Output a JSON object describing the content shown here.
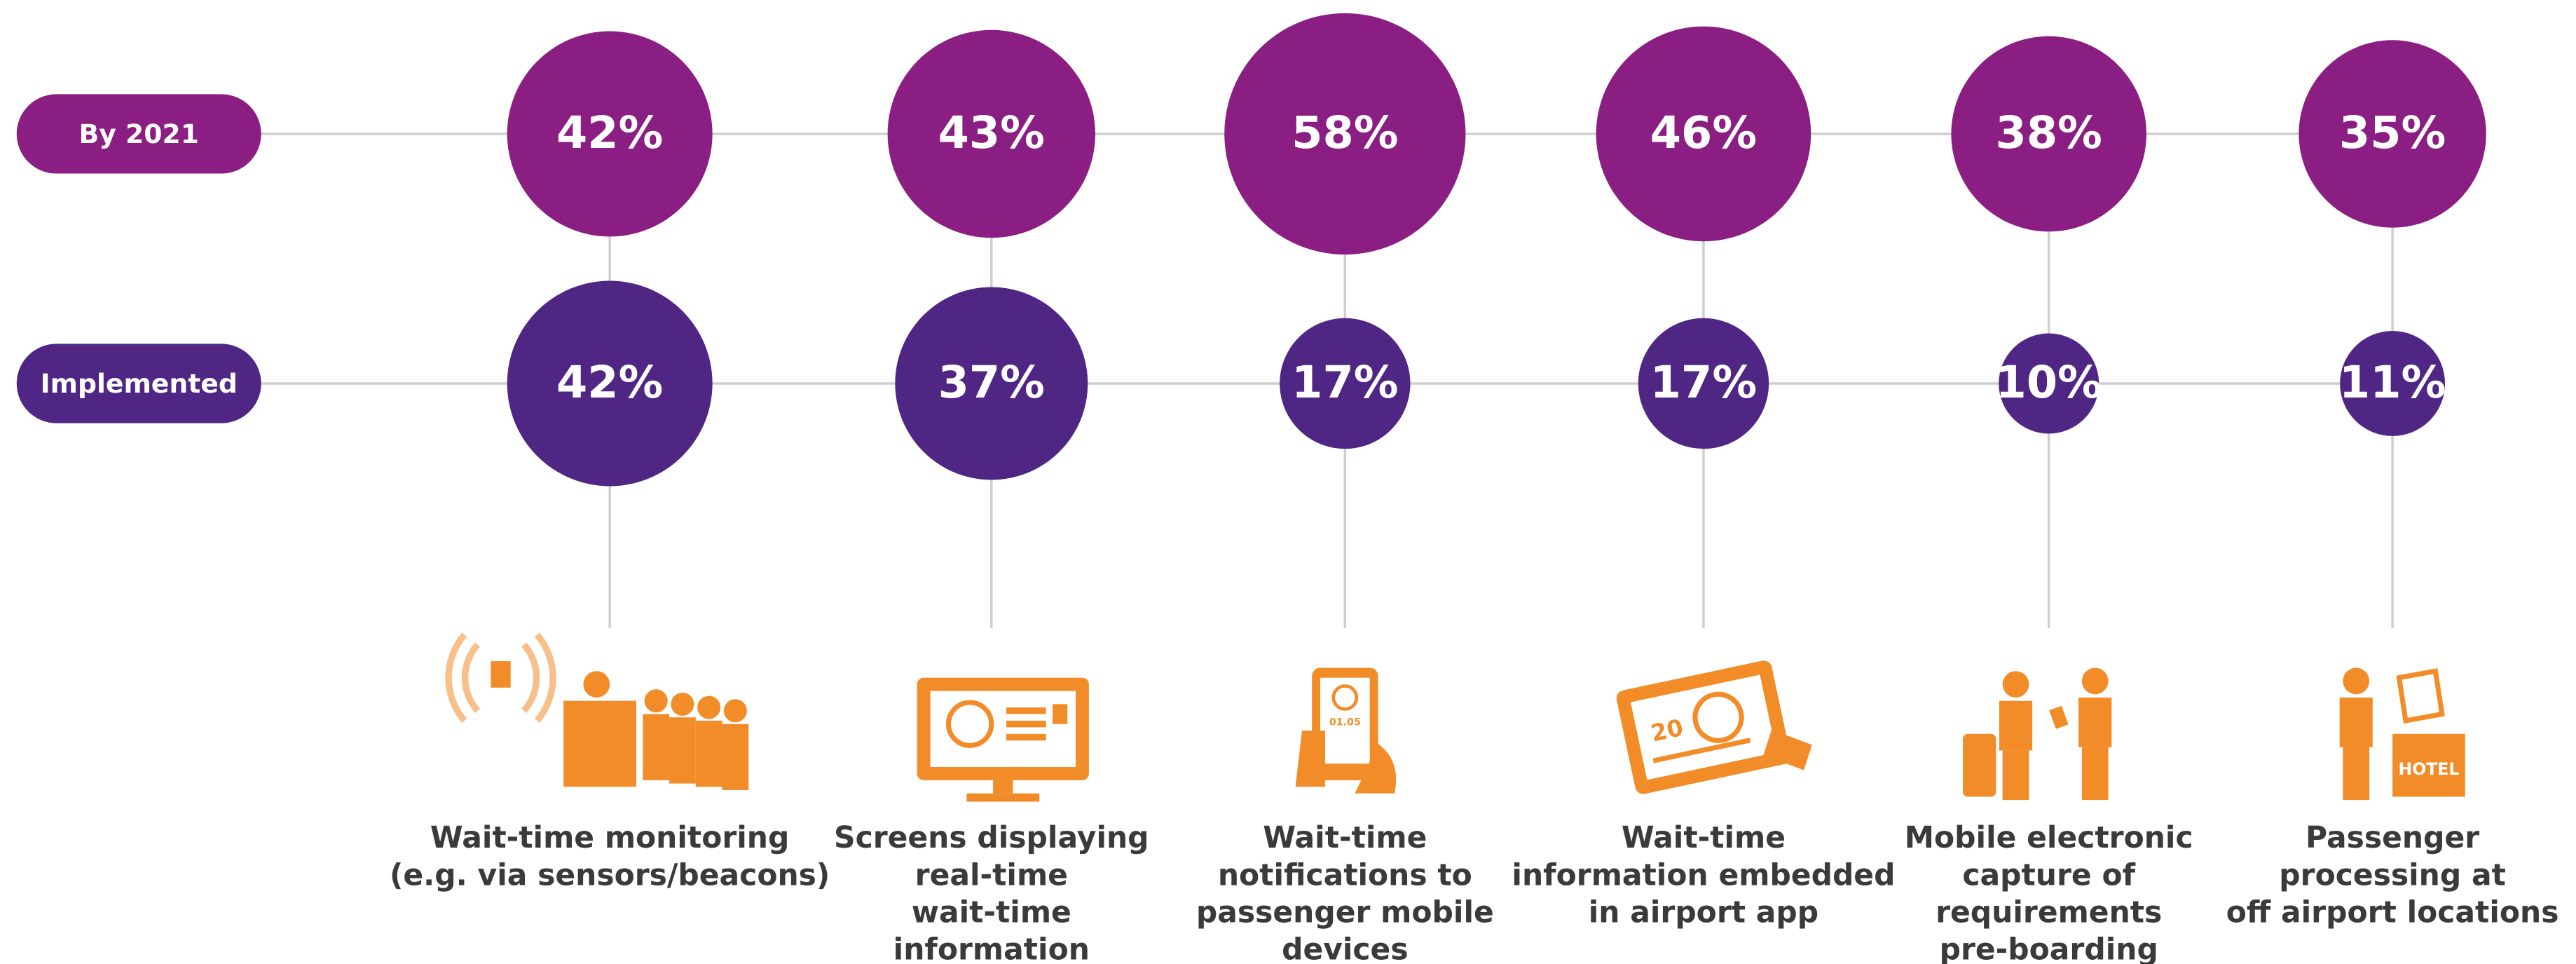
{
  "chart_data": {
    "type": "bubble",
    "categories": [
      [
        "Wait-time monitoring",
        "(e.g. via sensors/beacons)"
      ],
      [
        "Screens displaying",
        "real-time",
        "wait-time",
        "information"
      ],
      [
        "Wait-time",
        "notifications to",
        "passenger mobile",
        "devices"
      ],
      [
        "Wait-time",
        "information embedded",
        "in airport app"
      ],
      [
        "Mobile electronic",
        "capture of",
        "requirements",
        "pre-boarding"
      ],
      [
        "Passenger",
        "processing at",
        "off airport locations"
      ]
    ],
    "series": [
      {
        "name": "By 2021",
        "color": "#8a1e82",
        "values": [
          42,
          43,
          58,
          46,
          38,
          35
        ],
        "value_labels": [
          "42%",
          "43%",
          "58%",
          "46%",
          "38%",
          "35%"
        ]
      },
      {
        "name": "Implemented",
        "color": "#4f2683",
        "values": [
          42,
          37,
          17,
          17,
          10,
          11
        ],
        "value_labels": [
          "42%",
          "37%",
          "17%",
          "17%",
          "10%",
          "11%"
        ]
      }
    ],
    "icon_texts": {
      "phone": "01.05",
      "tablet": "20",
      "hotel": "HOTEL"
    }
  }
}
